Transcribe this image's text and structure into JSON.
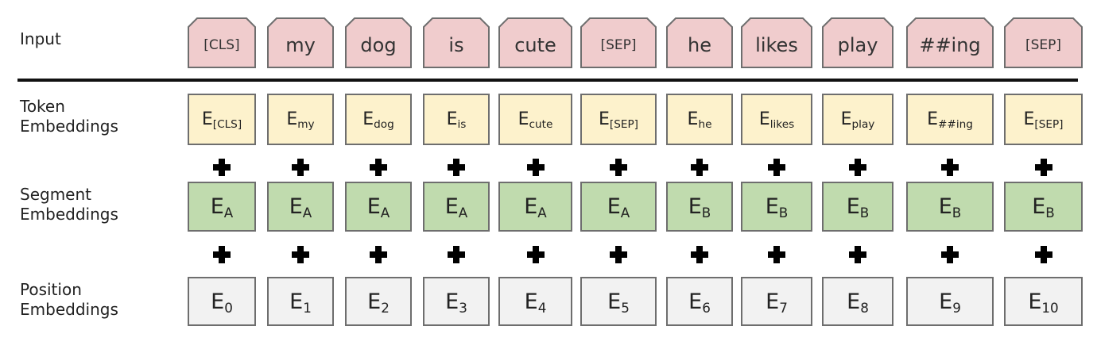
{
  "row_labels": {
    "input": "Input",
    "token": "Token Embeddings",
    "segment": "Segment Embeddings",
    "position": "Position Embeddings"
  },
  "input_tokens": [
    "[CLS]",
    "my",
    "dog",
    "is",
    "cute",
    "[SEP]",
    "he",
    "likes",
    "play",
    "##ing",
    "[SEP]"
  ],
  "token_embeddings": [
    {
      "base": "E",
      "sub": "[CLS]"
    },
    {
      "base": "E",
      "sub": "my"
    },
    {
      "base": "E",
      "sub": "dog"
    },
    {
      "base": "E",
      "sub": "is"
    },
    {
      "base": "E",
      "sub": "cute"
    },
    {
      "base": "E",
      "sub": "[SEP]"
    },
    {
      "base": "E",
      "sub": "he"
    },
    {
      "base": "E",
      "sub": "likes"
    },
    {
      "base": "E",
      "sub": "play"
    },
    {
      "base": "E",
      "sub": "##ing"
    },
    {
      "base": "E",
      "sub": "[SEP]"
    }
  ],
  "segment_embeddings": [
    {
      "base": "E",
      "sub": "A"
    },
    {
      "base": "E",
      "sub": "A"
    },
    {
      "base": "E",
      "sub": "A"
    },
    {
      "base": "E",
      "sub": "A"
    },
    {
      "base": "E",
      "sub": "A"
    },
    {
      "base": "E",
      "sub": "A"
    },
    {
      "base": "E",
      "sub": "B"
    },
    {
      "base": "E",
      "sub": "B"
    },
    {
      "base": "E",
      "sub": "B"
    },
    {
      "base": "E",
      "sub": "B"
    },
    {
      "base": "E",
      "sub": "B"
    }
  ],
  "position_embeddings": [
    {
      "base": "E",
      "sub": "0"
    },
    {
      "base": "E",
      "sub": "1"
    },
    {
      "base": "E",
      "sub": "2"
    },
    {
      "base": "E",
      "sub": "3"
    },
    {
      "base": "E",
      "sub": "4"
    },
    {
      "base": "E",
      "sub": "5"
    },
    {
      "base": "E",
      "sub": "6"
    },
    {
      "base": "E",
      "sub": "7"
    },
    {
      "base": "E",
      "sub": "8"
    },
    {
      "base": "E",
      "sub": "9"
    },
    {
      "base": "E",
      "sub": "10"
    }
  ],
  "colors": {
    "input": "#f0cccd",
    "token": "#fdf2cc",
    "segment": "#c0dbae",
    "position": "#f2f2f2",
    "border": "#6e6e6e"
  }
}
